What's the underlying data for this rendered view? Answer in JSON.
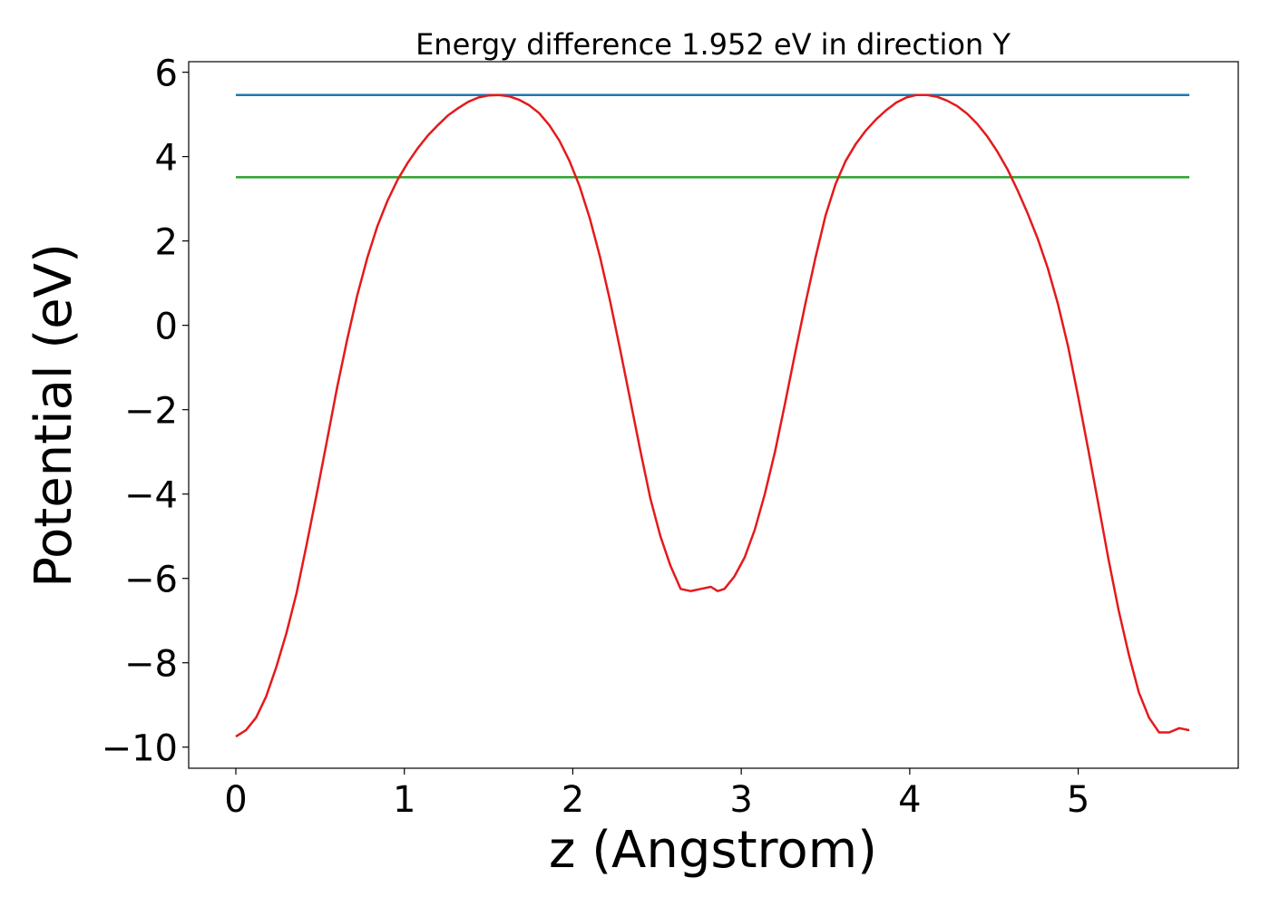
{
  "chart_data": {
    "type": "line",
    "title": "Energy difference 1.952 eV in direction Y",
    "xlabel": "z (Angstrom)",
    "ylabel": "Potential (eV)",
    "xlim": [
      -0.28,
      5.95
    ],
    "ylim": [
      -10.5,
      6.25
    ],
    "xticks": [
      0,
      1,
      2,
      3,
      4,
      5
    ],
    "yticks": [
      -10,
      -8,
      -6,
      -4,
      -2,
      0,
      2,
      4,
      6
    ],
    "xtick_labels": [
      "0",
      "1",
      "2",
      "3",
      "4",
      "5"
    ],
    "ytick_labels": [
      "−10",
      "−8",
      "−6",
      "−4",
      "−2",
      "0",
      "2",
      "4",
      "6"
    ],
    "grid": false,
    "series": [
      {
        "color": "#1f77b4",
        "x": [
          0,
          5.66
        ],
        "y": [
          5.46,
          5.46
        ]
      },
      {
        "color": "#2ca02c",
        "x": [
          0,
          5.66
        ],
        "y": [
          3.51,
          3.51
        ]
      },
      {
        "color": "#e41a1c",
        "x": [
          0,
          0.06,
          0.12,
          0.18,
          0.24,
          0.3,
          0.36,
          0.42,
          0.48,
          0.54,
          0.6,
          0.66,
          0.72,
          0.78,
          0.84,
          0.9,
          0.96,
          1.02,
          1.08,
          1.14,
          1.2,
          1.26,
          1.32,
          1.38,
          1.44,
          1.5,
          1.56,
          1.62,
          1.68,
          1.74,
          1.8,
          1.86,
          1.92,
          1.98,
          2.04,
          2.1,
          2.16,
          2.22,
          2.28,
          2.34,
          2.4,
          2.46,
          2.52,
          2.58,
          2.64,
          2.7,
          2.76,
          2.82,
          2.86,
          2.9,
          2.96,
          3.02,
          3.08,
          3.14,
          3.2,
          3.26,
          3.32,
          3.38,
          3.44,
          3.5,
          3.56,
          3.62,
          3.68,
          3.74,
          3.8,
          3.86,
          3.92,
          3.98,
          4.04,
          4.1,
          4.16,
          4.22,
          4.28,
          4.34,
          4.4,
          4.46,
          4.52,
          4.58,
          4.64,
          4.7,
          4.76,
          4.82,
          4.88,
          4.94,
          5.0,
          5.06,
          5.12,
          5.18,
          5.24,
          5.3,
          5.36,
          5.42,
          5.48,
          5.54,
          5.6,
          5.66
        ],
        "y": [
          -9.75,
          -9.6,
          -9.3,
          -8.8,
          -8.1,
          -7.3,
          -6.35,
          -5.2,
          -4.0,
          -2.75,
          -1.5,
          -0.35,
          0.7,
          1.6,
          2.35,
          2.95,
          3.45,
          3.85,
          4.2,
          4.5,
          4.75,
          4.98,
          5.15,
          5.3,
          5.4,
          5.45,
          5.46,
          5.43,
          5.35,
          5.22,
          5.03,
          4.75,
          4.38,
          3.9,
          3.3,
          2.55,
          1.65,
          0.6,
          -0.55,
          -1.75,
          -2.95,
          -4.1,
          -5.0,
          -5.7,
          -6.25,
          -6.3,
          -6.25,
          -6.2,
          -6.3,
          -6.25,
          -5.95,
          -5.5,
          -4.85,
          -4.0,
          -3.0,
          -1.85,
          -0.65,
          0.5,
          1.6,
          2.6,
          3.35,
          3.9,
          4.3,
          4.62,
          4.88,
          5.1,
          5.28,
          5.4,
          5.46,
          5.46,
          5.42,
          5.33,
          5.2,
          5.02,
          4.78,
          4.48,
          4.12,
          3.7,
          3.2,
          2.65,
          2.05,
          1.35,
          0.5,
          -0.5,
          -1.7,
          -2.95,
          -4.25,
          -5.55,
          -6.75,
          -7.8,
          -8.7,
          -9.3,
          -9.65,
          -9.65,
          -9.55,
          -9.6
        ]
      }
    ]
  }
}
